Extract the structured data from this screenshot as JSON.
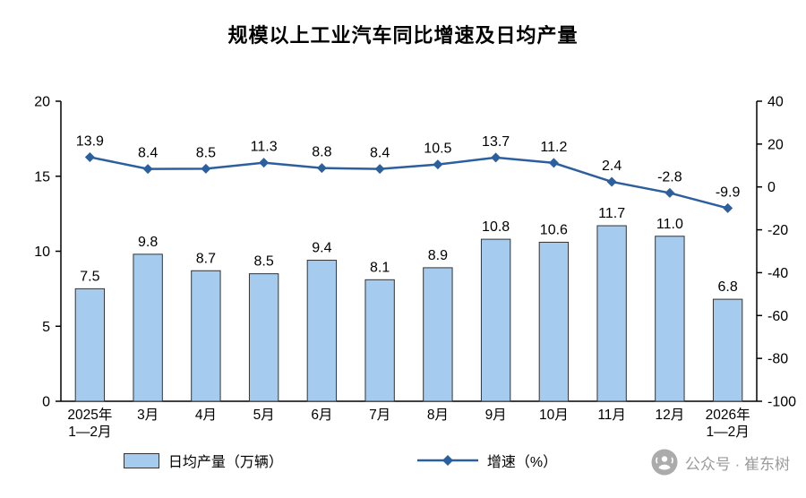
{
  "chart_data": {
    "type": "bar+line",
    "title": "规模以上工业汽车同比增速及日均产量",
    "categories": [
      "2025年\n1—2月",
      "3月",
      "4月",
      "5月",
      "6月",
      "7月",
      "8月",
      "9月",
      "10月",
      "11月",
      "12月",
      "2026年\n1—2月"
    ],
    "series": [
      {
        "name": "日均产量（万辆）",
        "type": "bar",
        "axis": "left",
        "color": "#A5CBEE",
        "border_color": "#333333",
        "values": [
          7.5,
          9.8,
          8.7,
          8.5,
          9.4,
          8.1,
          8.9,
          10.8,
          10.6,
          11.7,
          11.0,
          6.8
        ]
      },
      {
        "name": "增速（%）",
        "type": "line",
        "axis": "right",
        "color": "#2C5F9E",
        "marker": "diamond",
        "values": [
          13.9,
          8.4,
          8.5,
          11.3,
          8.8,
          8.4,
          10.5,
          13.7,
          11.2,
          2.4,
          -2.8,
          -9.9
        ]
      }
    ],
    "left_axis": {
      "min": 0,
      "max": 20,
      "ticks": [
        0,
        5,
        10,
        15,
        20
      ]
    },
    "right_axis": {
      "min": -100,
      "max": 40,
      "ticks": [
        -100,
        -80,
        -60,
        -40,
        -20,
        0,
        20,
        40
      ]
    },
    "grid": false,
    "legend_position": "bottom"
  },
  "watermark": {
    "text": "公众号 · 崔东树",
    "icon": "wechat-official-account-logo"
  }
}
